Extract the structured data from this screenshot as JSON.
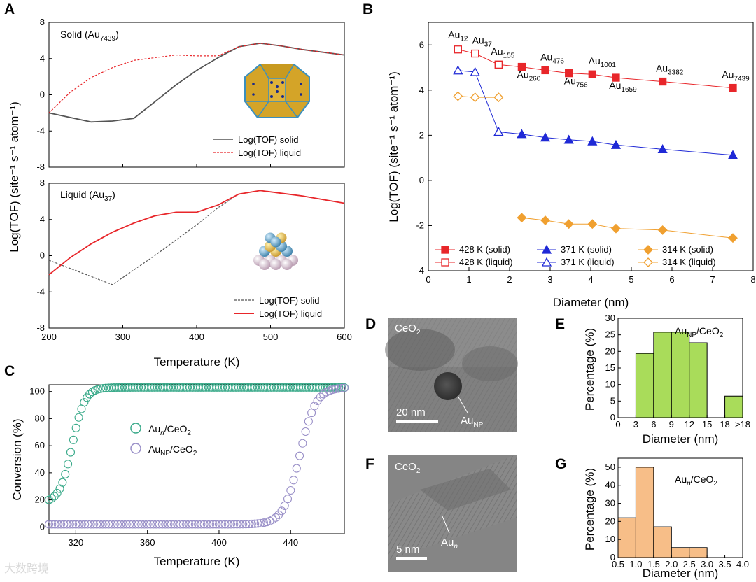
{
  "watermark": "大数跨境",
  "panels": {
    "A": {
      "letter": "A",
      "ylabel": "Log(TOF) (site⁻¹ s⁻¹ atom⁻¹)",
      "xlabel": "Temperature (K)",
      "top_title": "Solid (Au",
      "top_title_sub": "7439",
      "top_title_end": ")",
      "bottom_title": "Liquid (Au",
      "bottom_title_sub": "37",
      "bottom_title_end": ")",
      "legend_solid": "Log(TOF) solid",
      "legend_liquid": "Log(TOF) liquid"
    },
    "B": {
      "letter": "B",
      "ylabel": "Log(TOF) (site⁻¹ s⁻¹ atom⁻¹)",
      "xlabel": "Diameter (nm)",
      "cluster_labels": [
        {
          "base": "Au",
          "sub": "12"
        },
        {
          "base": "Au",
          "sub": "37"
        },
        {
          "base": "Au",
          "sub": "155"
        },
        {
          "base": "Au",
          "sub": "260"
        },
        {
          "base": "Au",
          "sub": "476"
        },
        {
          "base": "Au",
          "sub": "756"
        },
        {
          "base": "Au",
          "sub": "1001"
        },
        {
          "base": "Au",
          "sub": "1659"
        },
        {
          "base": "Au",
          "sub": "3382"
        },
        {
          "base": "Au",
          "sub": "7439"
        }
      ],
      "legend": [
        "428 K (solid)",
        "428 K (liquid)",
        "371 K (solid)",
        "371 K (liquid)",
        "314 K (solid)",
        "314 K (liquid)"
      ]
    },
    "C": {
      "letter": "C",
      "xlabel": "Temperature (K)",
      "ylabel": "Conversion (%)",
      "legend1_base": "Au",
      "legend1_sub": "n",
      "legend1_end": "/CeO",
      "legend1_sub2": "2",
      "legend2_base": "Au",
      "legend2_sub": "NP",
      "legend2_end": "/CeO",
      "legend2_sub2": "2"
    },
    "D": {
      "letter": "D",
      "support": "CeO",
      "support_sub": "2",
      "scale": "20 nm",
      "particle_base": "Au",
      "particle_sub": "NP"
    },
    "E": {
      "letter": "E",
      "title_base": "Au",
      "title_sub": "NP",
      "title_end": "/CeO",
      "title_sub2": "2",
      "ylabel": "Percentage (%)",
      "xlabel": "Diameter (nm)"
    },
    "F": {
      "letter": "F",
      "support": "CeO",
      "support_sub": "2",
      "scale": "5 nm",
      "particle_base": "Au",
      "particle_sub": "n"
    },
    "G": {
      "letter": "G",
      "title_base": "Au",
      "title_sub": "n",
      "title_end": "/CeO",
      "title_sub2": "2",
      "ylabel": "Percentage (%)",
      "xlabel": "Diameter (nm)"
    }
  },
  "colors": {
    "red": "#e8262a",
    "red_light": "#f08d8d",
    "blue": "#1f29d6",
    "orange": "#f0a030",
    "green": "#3aaa8a",
    "lavender": "#9a90c8",
    "lime": "#a9dc5a",
    "peach": "#f7be88",
    "gray": "#555555"
  },
  "chart_data": [
    {
      "id": "A-top",
      "type": "line",
      "title": "Solid (Au7439)",
      "xlim": [
        200,
        600
      ],
      "ylim": [
        -8,
        8
      ],
      "yticks": [
        -8,
        -4,
        0,
        4,
        8
      ],
      "series": [
        {
          "name": "Log(TOF) solid",
          "style": "solid",
          "x": [
            200,
            257,
            286,
            315,
            343,
            372,
            400,
            429,
            457,
            486,
            514,
            543,
            571,
            600
          ],
          "y": [
            -2.0,
            -3.0,
            -2.9,
            -2.6,
            -0.8,
            1.1,
            2.7,
            4.1,
            5.3,
            5.7,
            5.4,
            5.0,
            4.7,
            4.4
          ]
        },
        {
          "name": "Log(TOF) liquid",
          "style": "dashed",
          "x": [
            200,
            229,
            257,
            286,
            315,
            343,
            372,
            400,
            429,
            457,
            486,
            514,
            543,
            571,
            600
          ],
          "y": [
            -2.0,
            0.3,
            1.9,
            3.0,
            3.8,
            4.1,
            4.4,
            4.3,
            4.3,
            5.3,
            5.7,
            5.4,
            5.0,
            4.7,
            4.4
          ]
        }
      ]
    },
    {
      "id": "A-bottom",
      "type": "line",
      "title": "Liquid (Au37)",
      "xlim": [
        200,
        600
      ],
      "ylim": [
        -8,
        8
      ],
      "yticks": [
        -8,
        -4,
        0,
        4,
        8
      ],
      "xticks": [
        200,
        300,
        400,
        500,
        600
      ],
      "series": [
        {
          "name": "Log(TOF) solid",
          "style": "dashed",
          "x": [
            200,
            286,
            343,
            400,
            429,
            457,
            486,
            514,
            543,
            571,
            600
          ],
          "y": [
            -0.5,
            -3.2,
            0.0,
            3.4,
            5.3,
            6.8,
            7.2,
            6.9,
            6.6,
            6.2,
            5.8
          ]
        },
        {
          "name": "Log(TOF) liquid",
          "style": "solid",
          "x": [
            200,
            229,
            257,
            286,
            315,
            343,
            372,
            400,
            429,
            457,
            486,
            514,
            543,
            571,
            600
          ],
          "y": [
            -2.1,
            -0.2,
            1.3,
            2.6,
            3.6,
            4.4,
            4.8,
            4.8,
            5.6,
            6.8,
            7.2,
            6.9,
            6.6,
            6.2,
            5.8
          ]
        }
      ]
    },
    {
      "id": "B",
      "type": "line",
      "xlim": [
        0,
        8
      ],
      "ylim": [
        -4,
        7
      ],
      "xticks": [
        0,
        1,
        2,
        3,
        4,
        5,
        6,
        7,
        8
      ],
      "yticks": [
        -4,
        -2,
        0,
        2,
        4,
        6
      ],
      "series": [
        {
          "name": "428 K (solid)",
          "marker": "square",
          "filled": true,
          "x": [
            1.73,
            2.3,
            2.88,
            3.46,
            4.04,
            4.62,
            5.77,
            7.5
          ],
          "y": [
            5.13,
            5.03,
            4.88,
            4.75,
            4.7,
            4.55,
            4.38,
            4.1
          ]
        },
        {
          "name": "428 K (liquid)",
          "marker": "square",
          "filled": false,
          "x": [
            0.73,
            1.15,
            1.73
          ],
          "y": [
            5.8,
            5.62,
            5.13
          ]
        },
        {
          "name": "371 K (solid)",
          "marker": "triangle",
          "filled": true,
          "x": [
            1.73,
            2.3,
            2.88,
            3.46,
            4.04,
            4.62,
            5.77,
            7.5
          ],
          "y": [
            2.15,
            2.05,
            1.9,
            1.8,
            1.73,
            1.57,
            1.38,
            1.12
          ]
        },
        {
          "name": "371 K (liquid)",
          "marker": "triangle",
          "filled": false,
          "x": [
            0.73,
            1.15,
            1.73
          ],
          "y": [
            4.87,
            4.8,
            2.15
          ]
        },
        {
          "name": "314 K (solid)",
          "marker": "diamond",
          "filled": true,
          "x": [
            2.3,
            2.88,
            3.46,
            4.04,
            4.62,
            5.77,
            7.5
          ],
          "y": [
            -1.65,
            -1.77,
            -1.93,
            -1.93,
            -2.13,
            -2.2,
            -2.55
          ]
        },
        {
          "name": "314 K (liquid)",
          "marker": "diamond",
          "filled": false,
          "x": [
            0.73,
            1.15,
            1.73
          ],
          "y": [
            3.73,
            3.68,
            3.68
          ]
        }
      ]
    },
    {
      "id": "C",
      "type": "scatter",
      "xlim": [
        305,
        470
      ],
      "ylim": [
        -5,
        105
      ],
      "xticks": [
        320,
        360,
        400,
        440
      ],
      "yticks": [
        0,
        20,
        40,
        60,
        80,
        100
      ],
      "series": [
        {
          "name": "Aun/CeO2",
          "curve": "sigmoid",
          "midpoint": 318,
          "width": 3.5,
          "ymin": 18,
          "ymax": 103,
          "xrange": [
            305,
            470
          ],
          "points": 110
        },
        {
          "name": "AuNP/CeO2",
          "curve": "sigmoid",
          "midpoint": 445,
          "width": 4.5,
          "ymin": 2,
          "ymax": 103,
          "xrange": [
            305,
            470
          ],
          "points": 100
        }
      ]
    },
    {
      "id": "E",
      "type": "bar",
      "title": "AuNP/CeO2",
      "categories": [
        "3-6",
        "6-9",
        "9-12",
        "12-15",
        "15-18",
        ">18"
      ],
      "values": [
        19.4,
        25.8,
        25.8,
        22.6,
        0,
        6.5
      ],
      "xticks": [
        "0",
        "3",
        "6",
        "9",
        "12",
        "15",
        "18",
        ">18"
      ],
      "ylim": [
        0,
        30
      ],
      "yticks": [
        0,
        5,
        10,
        15,
        20,
        25,
        30
      ]
    },
    {
      "id": "G",
      "type": "bar",
      "title": "Aun/CeO2",
      "categories": [
        "0.5-1.0",
        "1.0-1.5",
        "1.5-2.0",
        "2.0-2.5",
        "2.5-3.0"
      ],
      "values": [
        22,
        50,
        17,
        5.5,
        5.5
      ],
      "xticks": [
        "0.5",
        "1.0",
        "1.5",
        "2.0",
        "2.5",
        "3.0",
        "3.5",
        "4.0"
      ],
      "ylim": [
        0,
        55
      ],
      "yticks": [
        0,
        10,
        20,
        30,
        40,
        50
      ]
    }
  ]
}
